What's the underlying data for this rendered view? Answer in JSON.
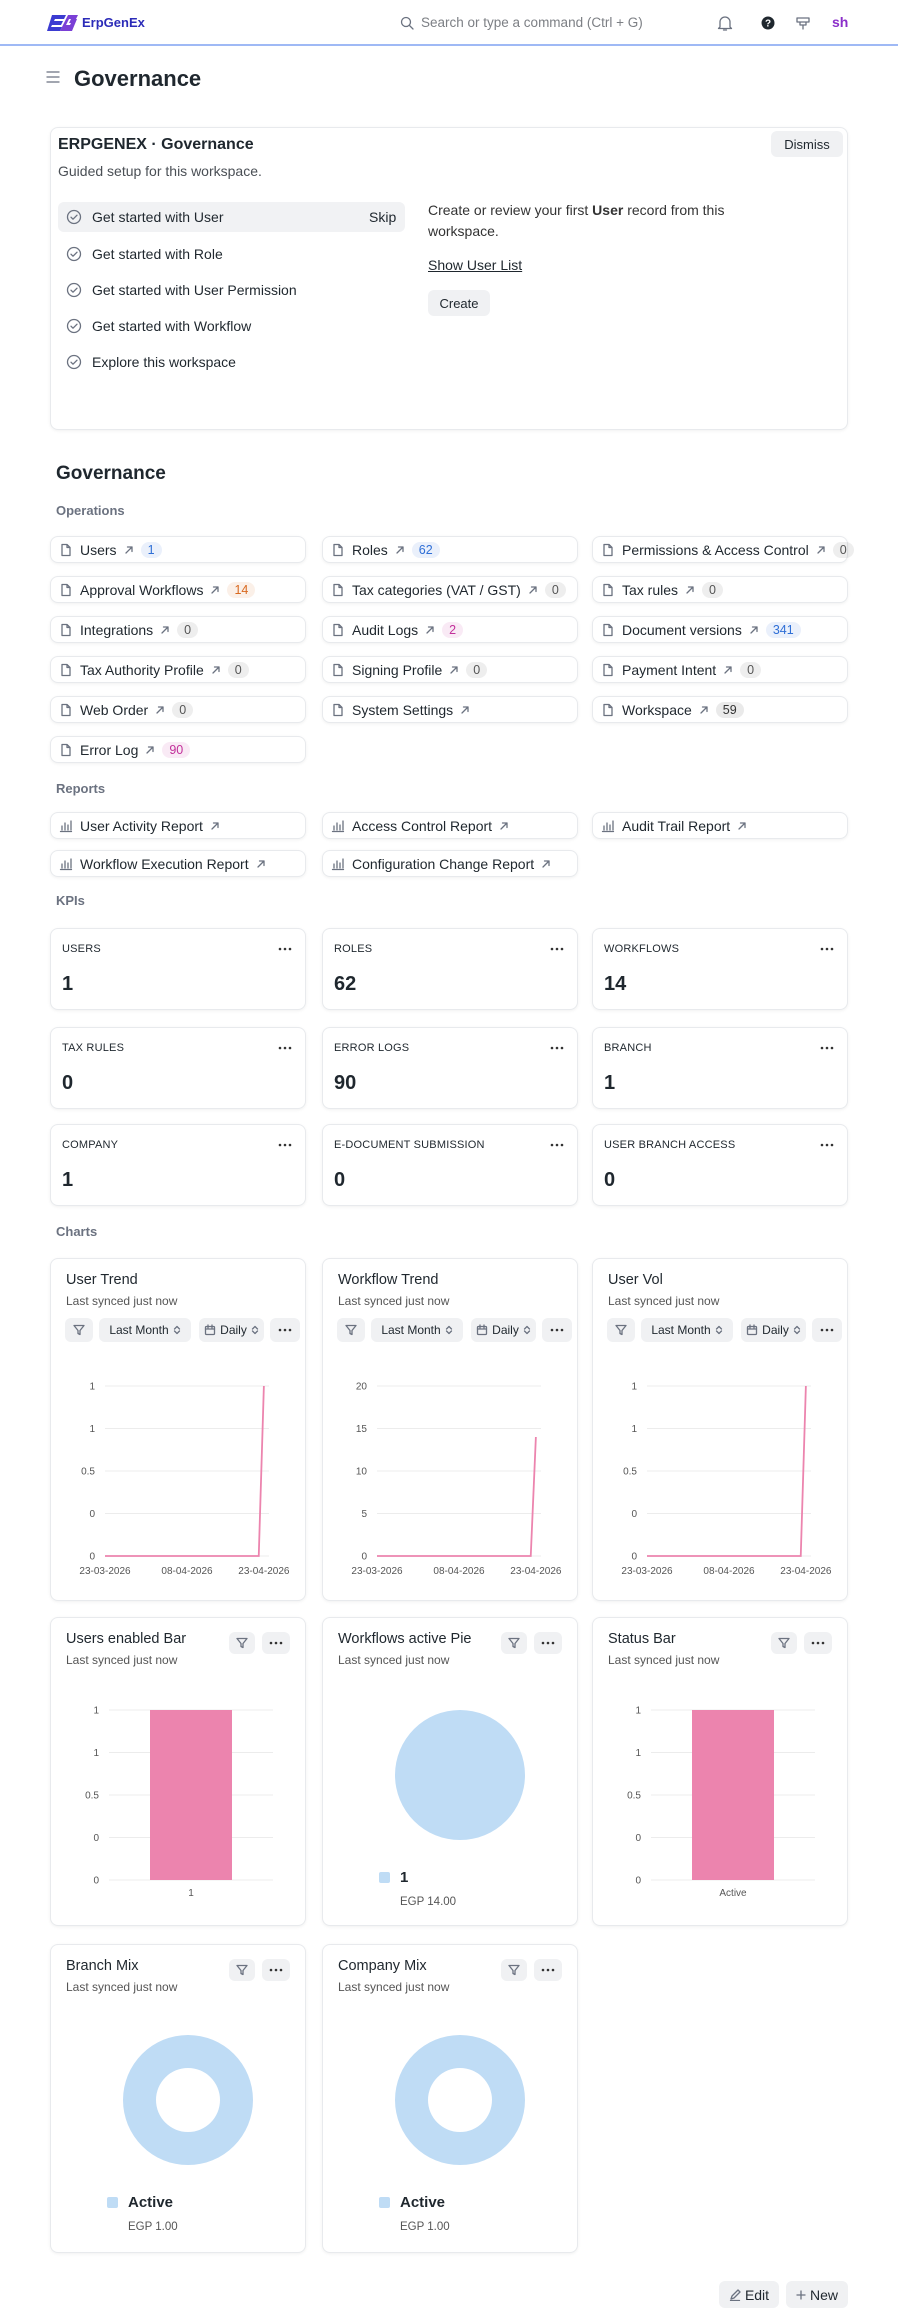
{
  "navbar": {
    "logo": "ErpGenEx",
    "search_placeholder": "Search or type a command (Ctrl + G)",
    "avatar": "sh"
  },
  "page": {
    "title": "Governance"
  },
  "onboarding": {
    "title": "ERPGENEX · Governance",
    "subtitle": "Guided setup for this workspace.",
    "dismiss": "Dismiss",
    "skip": "Skip",
    "steps": [
      "Get started with User",
      "Get started with Role",
      "Get started with User Permission",
      "Get started with Workflow",
      "Explore this workspace"
    ],
    "detail": {
      "text_before": "Create or review your first",
      "bold": "User",
      "text_after": "record from this workspace.",
      "link": "Show User List",
      "button": "Create"
    }
  },
  "workspace": {
    "title": "Governance",
    "shortcuts": {
      "label": "Operations",
      "items": [
        {
          "name": "Users",
          "count": 1,
          "count_color": "#2f6fd6"
        },
        {
          "name": "Roles",
          "count": 62,
          "count_color": "#2f6fd6"
        },
        {
          "name": "Permissions & Access Control",
          "count": 0,
          "count_color": "#555555"
        },
        {
          "name": "Approval Workflows",
          "count": 14,
          "count_color": "#d9691f"
        },
        {
          "name": "Tax categories (VAT / GST)",
          "count": 0,
          "count_color": "#555555"
        },
        {
          "name": "Tax rules",
          "count": 0,
          "count_color": "#555555"
        },
        {
          "name": "Integrations",
          "count": 0,
          "count_color": "#555555"
        },
        {
          "name": "Audit Logs",
          "count": 2,
          "count_color": "#c2309a"
        },
        {
          "name": "Document versions",
          "count": 341,
          "count_color": "#2f6fd6"
        },
        {
          "name": "Tax Authority Profile",
          "count": 0,
          "count_color": "#555555"
        },
        {
          "name": "Signing Profile",
          "count": 0,
          "count_color": "#555555"
        },
        {
          "name": "Payment Intent",
          "count": 0,
          "count_color": "#555555"
        },
        {
          "name": "Web Order",
          "count": 0,
          "count_color": "#555555"
        },
        {
          "name": "System Settings"
        },
        {
          "name": "Workspace",
          "count": 59,
          "count_color": "#333333"
        },
        {
          "name": "Error Log",
          "count": 90,
          "count_color": "#c2309a"
        }
      ]
    },
    "reports": {
      "label": "Reports",
      "items": [
        "User Activity Report",
        "Access Control Report",
        "Audit Trail Report",
        "Workflow Execution Report",
        "Configuration Change Report"
      ]
    },
    "kpis": {
      "label": "KPIs",
      "items": [
        {
          "label": "USERS",
          "value": 1
        },
        {
          "label": "ROLES",
          "value": 62
        },
        {
          "label": "WORKFLOWS",
          "value": 14
        },
        {
          "label": "TAX RULES",
          "value": 0
        },
        {
          "label": "ERROR LOGS",
          "value": 90
        },
        {
          "label": "BRANCH",
          "value": 1
        },
        {
          "label": "COMPANY",
          "value": 1
        },
        {
          "label": "E-DOCUMENT SUBMISSION",
          "value": 0
        },
        {
          "label": "USER BRANCH ACCESS",
          "value": 0
        }
      ]
    },
    "charts": {
      "label": "Charts",
      "items": [
        {
          "type": "line",
          "title": "User Trend",
          "subtitle": "Last synced just now",
          "filters": [
            "Last Month",
            "Daily"
          ],
          "color": "#ec84ae",
          "x": [
            "2026-03-23",
            "2026-04-22",
            "2026-04-23"
          ],
          "values": [
            0,
            0,
            1
          ],
          "xlim": [
            "2026-03-23",
            "2026-04-24"
          ],
          "xticks": [
            {
              "value": "2026-03-23",
              "label": "23-03-2026"
            },
            {
              "value": "2026-04-08",
              "label": "08-04-2026"
            },
            {
              "value": "2026-04-23",
              "label": "23-04-2026"
            }
          ],
          "ylim": [
            0,
            1
          ],
          "yticks": [
            0,
            {
              "value": 0.25,
              "label": "0"
            },
            0.5,
            {
              "value": 0.75,
              "label": "1"
            },
            1
          ],
          "grid": true
        },
        {
          "type": "line",
          "title": "Workflow Trend",
          "subtitle": "Last synced just now",
          "filters": [
            "Last Month",
            "Daily"
          ],
          "color": "#ec84ae",
          "x": [
            "2026-03-23",
            "2026-04-22",
            "2026-04-23"
          ],
          "values": [
            0,
            0,
            14
          ],
          "xlim": [
            "2026-03-23",
            "2026-04-24"
          ],
          "xticks": [
            {
              "value": "2026-03-23",
              "label": "23-03-2026"
            },
            {
              "value": "2026-04-08",
              "label": "08-04-2026"
            },
            {
              "value": "2026-04-23",
              "label": "23-04-2026"
            }
          ],
          "ylim": [
            0,
            20
          ],
          "yticks": [
            0,
            5,
            10,
            15,
            20
          ],
          "grid": true
        },
        {
          "type": "line",
          "title": "User Vol",
          "subtitle": "Last synced just now",
          "filters": [
            "Last Month",
            "Daily"
          ],
          "color": "#ec84ae",
          "x": [
            "2026-03-23",
            "2026-04-22",
            "2026-04-23"
          ],
          "values": [
            0,
            0,
            1
          ],
          "xlim": [
            "2026-03-23",
            "2026-04-24"
          ],
          "xticks": [
            {
              "value": "2026-03-23",
              "label": "23-03-2026"
            },
            {
              "value": "2026-04-08",
              "label": "08-04-2026"
            },
            {
              "value": "2026-04-23",
              "label": "23-04-2026"
            }
          ],
          "ylim": [
            0,
            1
          ],
          "yticks": [
            0,
            {
              "value": 0.25,
              "label": "0"
            },
            0.5,
            {
              "value": 0.75,
              "label": "1"
            },
            1
          ],
          "grid": true
        },
        {
          "type": "bar",
          "title": "Users enabled Bar",
          "subtitle": "Last synced just now",
          "color": "#ec84ae",
          "categories": [
            "1"
          ],
          "values": [
            1
          ],
          "ylim": [
            0,
            1
          ],
          "yticks": [
            0,
            {
              "value": 0.25,
              "label": "0"
            },
            0.5,
            {
              "value": 0.75,
              "label": "1"
            },
            1
          ],
          "grid": true
        },
        {
          "type": "pie",
          "title": "Workflows active Pie",
          "subtitle": "Last synced just now",
          "color": "#bfdcf5",
          "categories": [
            "1"
          ],
          "values": [
            14
          ],
          "value_labels": [
            "EGP 14.00"
          ]
        },
        {
          "type": "bar",
          "title": "Status Bar",
          "subtitle": "Last synced just now",
          "color": "#ec84ae",
          "categories": [
            "Active"
          ],
          "values": [
            1
          ],
          "ylim": [
            0,
            1
          ],
          "yticks": [
            0,
            {
              "value": 0.25,
              "label": "0"
            },
            0.5,
            {
              "value": 0.75,
              "label": "1"
            },
            1
          ],
          "grid": true
        },
        {
          "type": "donut",
          "title": "Branch Mix",
          "subtitle": "Last synced just now",
          "color": "#bfdcf5",
          "categories": [
            "Active"
          ],
          "values": [
            1
          ],
          "value_labels": [
            "EGP 1.00"
          ]
        },
        {
          "type": "donut",
          "title": "Company Mix",
          "subtitle": "Last synced just now",
          "color": "#bfdcf5",
          "categories": [
            "Active"
          ],
          "values": [
            1
          ],
          "value_labels": [
            "EGP 1.00"
          ]
        }
      ]
    }
  },
  "footer": {
    "edit": "Edit",
    "new": "New"
  }
}
